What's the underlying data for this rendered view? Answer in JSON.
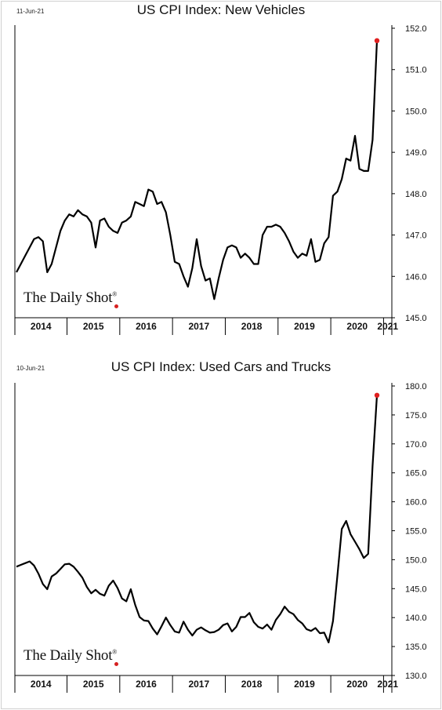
{
  "charts": [
    {
      "date": "11-Jun-21",
      "logo": "The Daily Shot",
      "logo_mark": "®",
      "chart_data": {
        "type": "line",
        "title": "US CPI Index: New Vehicles",
        "xlabel": "",
        "ylabel": "",
        "x_start": "2014-01",
        "x_end": "2021-05",
        "ylim": [
          145.0,
          152.0
        ],
        "yticks": [
          "152.0",
          "151.0",
          "150.0",
          "149.0",
          "148.0",
          "147.0",
          "146.0",
          "145.0"
        ],
        "year_labels": [
          "2014",
          "2015",
          "2016",
          "2017",
          "2018",
          "2019",
          "2020",
          "2021"
        ],
        "grid": false,
        "highlight_last_point": true,
        "highlight_color": "#e02020",
        "line_color": "#000000",
        "values": [
          146.1,
          146.3,
          146.5,
          146.7,
          146.9,
          146.95,
          146.85,
          146.1,
          146.3,
          146.7,
          147.1,
          147.35,
          147.5,
          147.45,
          147.6,
          147.5,
          147.45,
          147.3,
          146.7,
          147.35,
          147.4,
          147.2,
          147.1,
          147.05,
          147.3,
          147.35,
          147.45,
          147.8,
          147.75,
          147.7,
          148.1,
          148.05,
          147.75,
          147.8,
          147.55,
          147.0,
          146.35,
          146.3,
          146.0,
          145.75,
          146.2,
          146.9,
          146.25,
          145.9,
          145.95,
          145.45,
          145.95,
          146.4,
          146.7,
          146.75,
          146.7,
          146.45,
          146.55,
          146.45,
          146.3,
          146.3,
          147.0,
          147.2,
          147.2,
          147.25,
          147.2,
          147.05,
          146.85,
          146.6,
          146.45,
          146.55,
          146.5,
          146.9,
          146.35,
          146.4,
          146.8,
          146.95,
          147.95,
          148.05,
          148.35,
          148.85,
          148.8,
          149.4,
          148.6,
          148.55,
          148.55,
          149.3,
          151.7
        ]
      }
    },
    {
      "date": "10-Jun-21",
      "logo": "The Daily Shot",
      "logo_mark": "®",
      "chart_data": {
        "type": "line",
        "title": "US CPI Index: Used Cars and Trucks",
        "xlabel": "",
        "ylabel": "",
        "x_start": "2014-01",
        "x_end": "2021-05",
        "ylim": [
          130.0,
          180.0
        ],
        "yticks": [
          "180.0",
          "175.0",
          "170.0",
          "165.0",
          "160.0",
          "155.0",
          "150.0",
          "145.0",
          "140.0",
          "135.0",
          "130.0"
        ],
        "year_labels": [
          "2014",
          "2015",
          "2016",
          "2017",
          "2018",
          "2019",
          "2020",
          "2021"
        ],
        "grid": false,
        "highlight_last_point": true,
        "highlight_color": "#e02020",
        "line_color": "#000000",
        "values": [
          148.8,
          149.1,
          149.4,
          149.7,
          149.0,
          147.6,
          145.8,
          144.9,
          147.1,
          147.6,
          148.4,
          149.2,
          149.3,
          148.8,
          147.9,
          146.9,
          145.3,
          144.2,
          144.8,
          144.1,
          143.8,
          145.5,
          146.4,
          145.1,
          143.3,
          142.8,
          144.9,
          142.2,
          140.1,
          139.5,
          139.4,
          138.1,
          137.1,
          138.5,
          140.0,
          138.7,
          137.6,
          137.4,
          139.3,
          137.9,
          136.9,
          137.9,
          138.3,
          137.8,
          137.4,
          137.5,
          137.9,
          138.7,
          139.0,
          137.6,
          138.4,
          140.1,
          140.1,
          140.8,
          139.2,
          138.4,
          138.1,
          138.8,
          137.9,
          139.6,
          140.6,
          141.9,
          141.0,
          140.6,
          139.6,
          139.0,
          138.0,
          137.7,
          138.2,
          137.3,
          137.4,
          135.7,
          139.4,
          147.2,
          155.3,
          156.7,
          154.4,
          153.1,
          151.8,
          150.3,
          151.0,
          166.2,
          178.4
        ]
      }
    }
  ]
}
